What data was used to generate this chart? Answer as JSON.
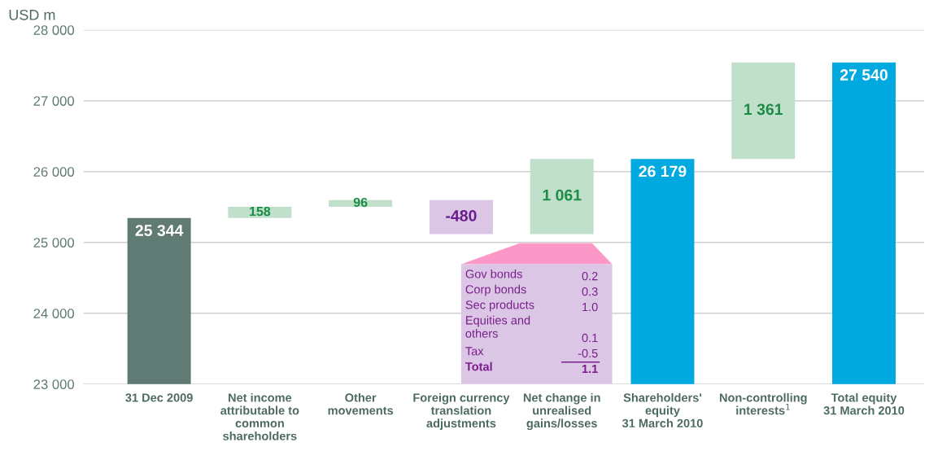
{
  "chart_data": {
    "type": "bar",
    "ylabel": "USD m",
    "categories": [
      "31 Dec 2009",
      "Net income\nattributable to\ncommon\nshareholders",
      "Other\nmovements",
      "Foreign currency\ntranslation\nadjustments",
      "Net change in\nunrealised\ngains/losses",
      "Shareholders'\nequity\n31 March 2010",
      "Non-controlling\ninterests$^{1}$",
      "Total equity\n31 March 2010"
    ],
    "values": [
      25344,
      158,
      96,
      -480,
      1061,
      26179,
      1361,
      27540
    ],
    "base": [
      null,
      25344,
      25502,
      25598,
      25118,
      null,
      26179,
      null
    ],
    "colors": [
      "#607b74",
      "#c0e0cc",
      "#c0e0cc",
      "#dcc6e6",
      "#c0e0cc",
      "#00a9e0",
      "#c0e0cc",
      "#00a9e0"
    ],
    "value_labels": [
      "25 344",
      "158",
      "96",
      "-480",
      "1 061",
      "26 179",
      "1 361",
      "27 540"
    ],
    "ylim": [
      23000,
      28000
    ],
    "yticks": [
      {
        "value": 23000,
        "label": "23 000"
      },
      {
        "value": 24000,
        "label": "24 000"
      },
      {
        "value": 25000,
        "label": "25 000"
      },
      {
        "value": 26000,
        "label": "26 000"
      },
      {
        "value": 27000,
        "label": "27 000"
      },
      {
        "value": 28000,
        "label": "28 000"
      }
    ],
    "grid": "y",
    "annotations": [
      "Gov bonds",
      "0.2",
      "Corp bonds",
      "0.3",
      "Sec products",
      "1.0",
      "Equities and\nothers",
      "0.1",
      "Tax",
      "-0.5",
      "Total",
      "1.1"
    ]
  }
}
